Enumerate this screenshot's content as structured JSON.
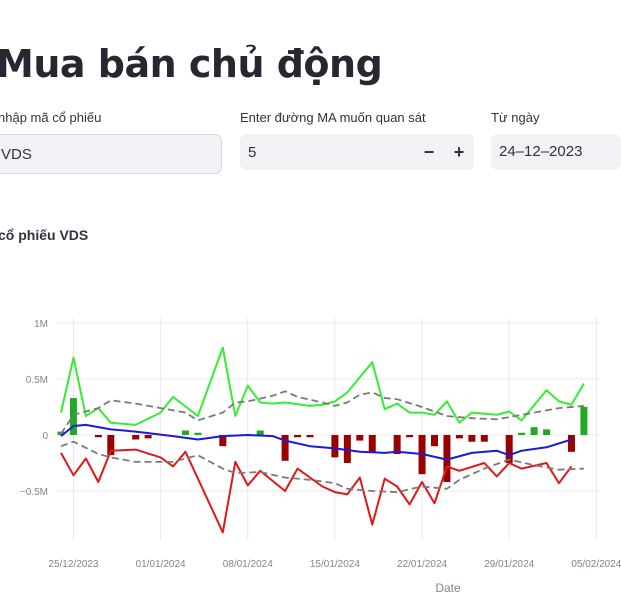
{
  "page": {
    "title": "Mua bán chủ động"
  },
  "controls": {
    "ticker_label": "nhập mã cổ phiếu",
    "ticker_value": "VDS",
    "ma_label": "Enter đường MA muốn quan sát",
    "ma_value": "5",
    "minus": "−",
    "plus": "+",
    "from_label": "Từ ngày",
    "from_value": "24–12–2023"
  },
  "chart_title": "cổ phiếu VDS",
  "colors": {
    "buy_bar": "#1faa1f",
    "sell_bar": "#9b0000",
    "upper_line": "#33ee33",
    "lower_line": "#e01818",
    "ma_line": "#1a1adc",
    "band_line": "#7a7a7a",
    "grid": "#e9e9ee",
    "axis_text": "#808495"
  },
  "chart_data": {
    "type": "line",
    "xlabel": "Date",
    "ylabel": "",
    "y_ticks": [
      "1M",
      "0.5M",
      "0",
      "−0.5M"
    ],
    "y_tick_values": [
      1000000,
      500000,
      0,
      -500000
    ],
    "x_ticks": [
      "25/12/2023",
      "01/01/2024",
      "08/01/2024",
      "15/01/2024",
      "22/01/2024",
      "29/01/2024",
      "05/02/2024"
    ],
    "x_start": "2023-12-24",
    "ylim": [
      -1000000,
      1130000
    ],
    "grid": true,
    "bars": [
      {
        "date": "2023-12-24",
        "value": 30000
      },
      {
        "date": "2023-12-25",
        "value": 330000
      },
      {
        "date": "2023-12-27",
        "value": -20000
      },
      {
        "date": "2023-12-28",
        "value": -180000
      },
      {
        "date": "2023-12-30",
        "value": -40000
      },
      {
        "date": "2023-12-31",
        "value": -30000
      },
      {
        "date": "2024-01-03",
        "value": 40000
      },
      {
        "date": "2024-01-04",
        "value": 20000
      },
      {
        "date": "2024-01-06",
        "value": -100000
      },
      {
        "date": "2024-01-09",
        "value": 40000
      },
      {
        "date": "2024-01-11",
        "value": -230000
      },
      {
        "date": "2024-01-12",
        "value": -20000
      },
      {
        "date": "2024-01-13",
        "value": -20000
      },
      {
        "date": "2024-01-15",
        "value": -200000
      },
      {
        "date": "2024-01-16",
        "value": -250000
      },
      {
        "date": "2024-01-17",
        "value": -50000
      },
      {
        "date": "2024-01-18",
        "value": -150000
      },
      {
        "date": "2024-01-20",
        "value": -170000
      },
      {
        "date": "2024-01-21",
        "value": -20000
      },
      {
        "date": "2024-01-22",
        "value": -350000
      },
      {
        "date": "2024-01-23",
        "value": -100000
      },
      {
        "date": "2024-01-24",
        "value": -420000
      },
      {
        "date": "2024-01-25",
        "value": -30000
      },
      {
        "date": "2024-01-26",
        "value": -60000
      },
      {
        "date": "2024-01-27",
        "value": -60000
      },
      {
        "date": "2024-01-29",
        "value": -250000
      },
      {
        "date": "2024-01-30",
        "value": 20000
      },
      {
        "date": "2024-01-31",
        "value": 70000
      },
      {
        "date": "2024-02-01",
        "value": 50000
      },
      {
        "date": "2024-02-03",
        "value": -150000
      },
      {
        "date": "2024-02-04",
        "value": 250000
      }
    ],
    "series": [
      {
        "role": "upper",
        "points": [
          [
            "2023-12-24",
            200000
          ],
          [
            "2023-12-25",
            690000
          ],
          [
            "2023-12-26",
            170000
          ],
          [
            "2023-12-27",
            240000
          ],
          [
            "2023-12-28",
            110000
          ],
          [
            "2023-12-30",
            90000
          ],
          [
            "2024-01-01",
            200000
          ],
          [
            "2024-01-02",
            340000
          ],
          [
            "2024-01-04",
            170000
          ],
          [
            "2024-01-06",
            780000
          ],
          [
            "2024-01-07",
            170000
          ],
          [
            "2024-01-08",
            440000
          ],
          [
            "2024-01-09",
            290000
          ],
          [
            "2024-01-10",
            280000
          ],
          [
            "2024-01-11",
            290000
          ],
          [
            "2024-01-13",
            260000
          ],
          [
            "2024-01-14",
            270000
          ],
          [
            "2024-01-15",
            300000
          ],
          [
            "2024-01-16",
            380000
          ],
          [
            "2024-01-18",
            650000
          ],
          [
            "2024-01-19",
            230000
          ],
          [
            "2024-01-20",
            280000
          ],
          [
            "2024-01-21",
            200000
          ],
          [
            "2024-01-22",
            200000
          ],
          [
            "2024-01-23",
            180000
          ],
          [
            "2024-01-24",
            300000
          ],
          [
            "2024-01-25",
            110000
          ],
          [
            "2024-01-26",
            200000
          ],
          [
            "2024-01-28",
            180000
          ],
          [
            "2024-01-29",
            210000
          ],
          [
            "2024-01-30",
            130000
          ],
          [
            "2024-02-01",
            400000
          ],
          [
            "2024-02-02",
            300000
          ],
          [
            "2024-02-03",
            270000
          ],
          [
            "2024-02-04",
            460000
          ]
        ]
      },
      {
        "role": "lower",
        "points": [
          [
            "2023-12-24",
            -160000
          ],
          [
            "2023-12-25",
            -360000
          ],
          [
            "2023-12-26",
            -210000
          ],
          [
            "2023-12-27",
            -420000
          ],
          [
            "2023-12-28",
            -140000
          ],
          [
            "2023-12-30",
            -130000
          ],
          [
            "2024-01-01",
            -200000
          ],
          [
            "2024-01-02",
            -280000
          ],
          [
            "2024-01-03",
            -150000
          ],
          [
            "2024-01-06",
            -870000
          ],
          [
            "2024-01-07",
            -240000
          ],
          [
            "2024-01-08",
            -450000
          ],
          [
            "2024-01-09",
            -320000
          ],
          [
            "2024-01-11",
            -500000
          ],
          [
            "2024-01-12",
            -300000
          ],
          [
            "2024-01-14",
            -460000
          ],
          [
            "2024-01-15",
            -510000
          ],
          [
            "2024-01-16",
            -530000
          ],
          [
            "2024-01-17",
            -380000
          ],
          [
            "2024-01-18",
            -800000
          ],
          [
            "2024-01-19",
            -390000
          ],
          [
            "2024-01-20",
            -460000
          ],
          [
            "2024-01-21",
            -620000
          ],
          [
            "2024-01-22",
            -420000
          ],
          [
            "2024-01-23",
            -610000
          ],
          [
            "2024-01-24",
            -280000
          ],
          [
            "2024-01-25",
            -320000
          ],
          [
            "2024-01-27",
            -250000
          ],
          [
            "2024-01-28",
            -370000
          ],
          [
            "2024-01-29",
            -250000
          ],
          [
            "2024-01-30",
            -300000
          ],
          [
            "2024-02-01",
            -250000
          ],
          [
            "2024-02-02",
            -430000
          ],
          [
            "2024-02-03",
            -280000
          ]
        ]
      },
      {
        "role": "ma",
        "points": [
          [
            "2023-12-24",
            -10000
          ],
          [
            "2023-12-25",
            80000
          ],
          [
            "2023-12-26",
            90000
          ],
          [
            "2023-12-28",
            50000
          ],
          [
            "2023-12-30",
            30000
          ],
          [
            "2024-01-02",
            -10000
          ],
          [
            "2024-01-04",
            -40000
          ],
          [
            "2024-01-06",
            -10000
          ],
          [
            "2024-01-08",
            0
          ],
          [
            "2024-01-10",
            -10000
          ],
          [
            "2024-01-11",
            -50000
          ],
          [
            "2024-01-13",
            -100000
          ],
          [
            "2024-01-15",
            -120000
          ],
          [
            "2024-01-17",
            -150000
          ],
          [
            "2024-01-19",
            -160000
          ],
          [
            "2024-01-20",
            -150000
          ],
          [
            "2024-01-22",
            -170000
          ],
          [
            "2024-01-24",
            -220000
          ],
          [
            "2024-01-26",
            -160000
          ],
          [
            "2024-01-28",
            -140000
          ],
          [
            "2024-01-29",
            -180000
          ],
          [
            "2024-01-30",
            -140000
          ],
          [
            "2024-02-01",
            -110000
          ],
          [
            "2024-02-03",
            -40000
          ]
        ]
      },
      {
        "role": "band_upper",
        "points": [
          [
            "2023-12-24",
            10000
          ],
          [
            "2023-12-25",
            180000
          ],
          [
            "2023-12-27",
            240000
          ],
          [
            "2023-12-28",
            310000
          ],
          [
            "2023-12-30",
            280000
          ],
          [
            "2024-01-01",
            240000
          ],
          [
            "2024-01-03",
            200000
          ],
          [
            "2024-01-04",
            130000
          ],
          [
            "2024-01-06",
            200000
          ],
          [
            "2024-01-07",
            290000
          ],
          [
            "2024-01-08",
            300000
          ],
          [
            "2024-01-10",
            350000
          ],
          [
            "2024-01-11",
            390000
          ],
          [
            "2024-01-12",
            340000
          ],
          [
            "2024-01-14",
            290000
          ],
          [
            "2024-01-15",
            260000
          ],
          [
            "2024-01-16",
            290000
          ],
          [
            "2024-01-17",
            360000
          ],
          [
            "2024-01-18",
            380000
          ],
          [
            "2024-01-19",
            330000
          ],
          [
            "2024-01-20",
            320000
          ],
          [
            "2024-01-22",
            250000
          ],
          [
            "2024-01-24",
            170000
          ],
          [
            "2024-01-26",
            150000
          ],
          [
            "2024-01-28",
            140000
          ],
          [
            "2024-01-29",
            160000
          ],
          [
            "2024-01-31",
            200000
          ],
          [
            "2024-02-02",
            240000
          ],
          [
            "2024-02-04",
            260000
          ]
        ]
      },
      {
        "role": "band_lower",
        "points": [
          [
            "2023-12-24",
            -100000
          ],
          [
            "2023-12-25",
            -60000
          ],
          [
            "2023-12-27",
            -170000
          ],
          [
            "2023-12-28",
            -200000
          ],
          [
            "2023-12-30",
            -240000
          ],
          [
            "2024-01-02",
            -240000
          ],
          [
            "2024-01-04",
            -180000
          ],
          [
            "2024-01-06",
            -300000
          ],
          [
            "2024-01-07",
            -340000
          ],
          [
            "2024-01-09",
            -330000
          ],
          [
            "2024-01-11",
            -380000
          ],
          [
            "2024-01-13",
            -400000
          ],
          [
            "2024-01-15",
            -430000
          ],
          [
            "2024-01-16",
            -480000
          ],
          [
            "2024-01-18",
            -500000
          ],
          [
            "2024-01-20",
            -510000
          ],
          [
            "2024-01-22",
            -460000
          ],
          [
            "2024-01-24",
            -480000
          ],
          [
            "2024-01-25",
            -400000
          ],
          [
            "2024-01-27",
            -300000
          ],
          [
            "2024-01-29",
            -220000
          ],
          [
            "2024-01-31",
            -270000
          ],
          [
            "2024-02-02",
            -310000
          ],
          [
            "2024-02-04",
            -300000
          ]
        ]
      }
    ]
  }
}
